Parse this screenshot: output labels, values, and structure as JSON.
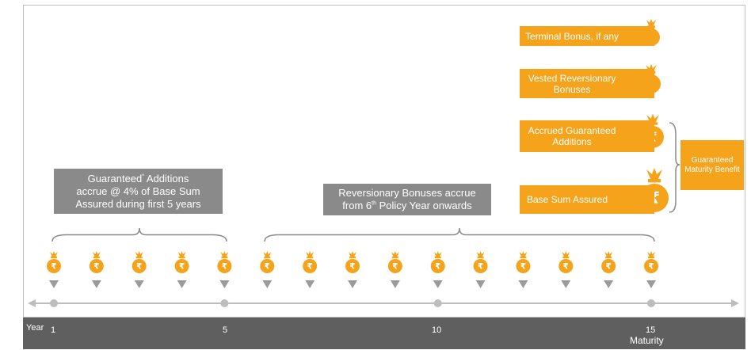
{
  "colors": {
    "accent": "#f5a31b",
    "gray_box": "#8a8a8a",
    "year_bar": "#5f5f5f",
    "timeline": "#bdbdbd"
  },
  "icon": "rupee-money-bag-icon",
  "guaranteed_additions": {
    "before": "Guaranteed",
    "sup": "*",
    "after": " Additions",
    "line2": "accrue @ 4% of Base Sum",
    "line3": "Assured during first 5 years"
  },
  "reversionary_bonuses": {
    "line1": "Reversionary Bonuses accrue",
    "from": "from 6",
    "sup": "th",
    "after": " Policy Year onwards"
  },
  "benefits": {
    "terminal": "Terminal Bonus, if any",
    "vested": "Vested Reversionary Bonuses",
    "accrued": "Accrued Guaranteed Additions",
    "base": "Base Sum Assured"
  },
  "guaranteed_maturity_benefit": "Guaranteed Maturity Benefit",
  "year_axis": {
    "label": "Year",
    "ticks": [
      "1",
      "5",
      "10",
      "15"
    ],
    "maturity": "Maturity"
  },
  "policy_years": 15,
  "rupee_symbol": "₹"
}
